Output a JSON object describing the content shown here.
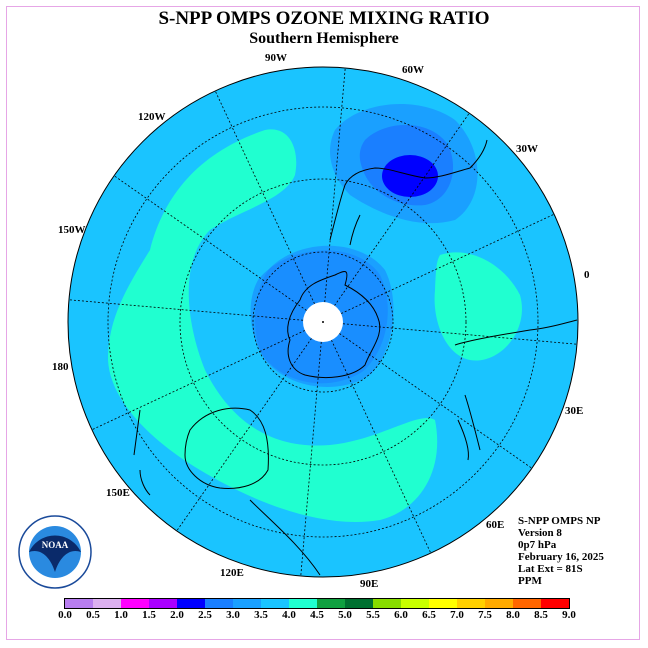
{
  "title": "S-NPP OMPS OZONE MIXING RATIO",
  "subtitle": "Southern Hemisphere",
  "longitude_labels": [
    "0",
    "30W",
    "60W",
    "90W",
    "120W",
    "150W",
    "180",
    "150E",
    "120E",
    "90E",
    "60E",
    "30E"
  ],
  "info": {
    "instrument": "S-NPP OMPS NP",
    "version": "Version 8",
    "level": "0p7 hPa",
    "date": "February 16, 2025",
    "lat_ext": "Lat Ext = 81S",
    "units": "PPM"
  },
  "logo": {
    "text": "NOAA"
  },
  "colorbar": {
    "ticks": [
      "0.0",
      "0.5",
      "1.0",
      "1.5",
      "2.0",
      "2.5",
      "3.0",
      "3.5",
      "4.0",
      "4.5",
      "5.0",
      "5.5",
      "6.0",
      "6.5",
      "7.0",
      "7.5",
      "8.0",
      "8.5",
      "9.0"
    ],
    "colors": [
      "#b87ef0",
      "#dcb0f0",
      "#ff00ff",
      "#aa00ff",
      "#0000ff",
      "#1a7fff",
      "#1aa0ff",
      "#1ac4ff",
      "#20ffd0",
      "#10a040",
      "#007030",
      "#88dd00",
      "#c8ff00",
      "#ffff00",
      "#ffd000",
      "#ffaa00",
      "#ff6600",
      "#ff0000",
      "#885533"
    ]
  },
  "colors": {
    "background_field": "#1ac4ff",
    "high_ozone": "#20ffd0",
    "lower": "#1aa0ff",
    "low": "#1a7fff",
    "lowest": "#0000ff"
  }
}
